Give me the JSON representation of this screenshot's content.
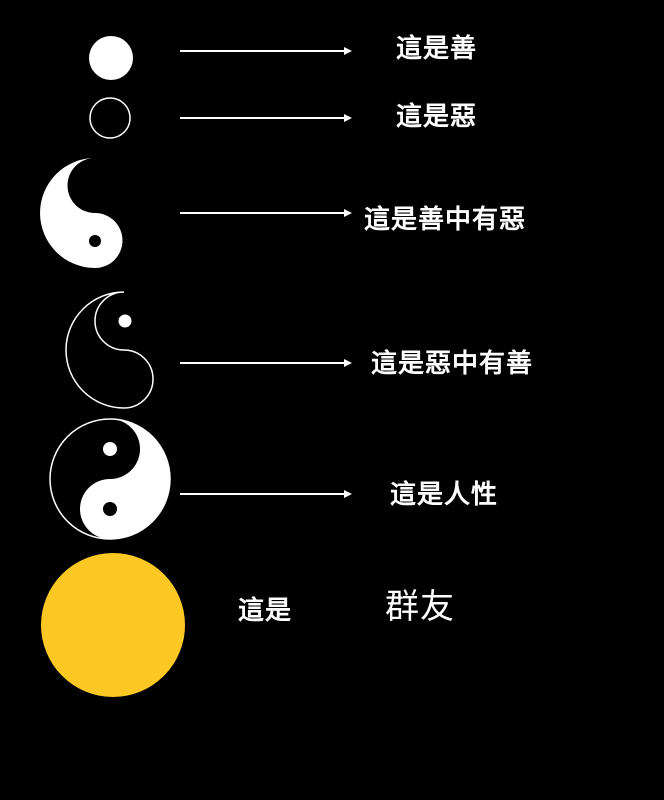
{
  "rows": [
    {
      "label": "這是善"
    },
    {
      "label": "這是惡"
    },
    {
      "label": "這是善中有惡"
    },
    {
      "label": "這是惡中有善"
    },
    {
      "label": "這是人性"
    }
  ],
  "final": {
    "label_left": "這是",
    "label_right": "群友"
  },
  "colors": {
    "background": "#000000",
    "foreground": "#ffffff",
    "accent": "#fdc823"
  }
}
